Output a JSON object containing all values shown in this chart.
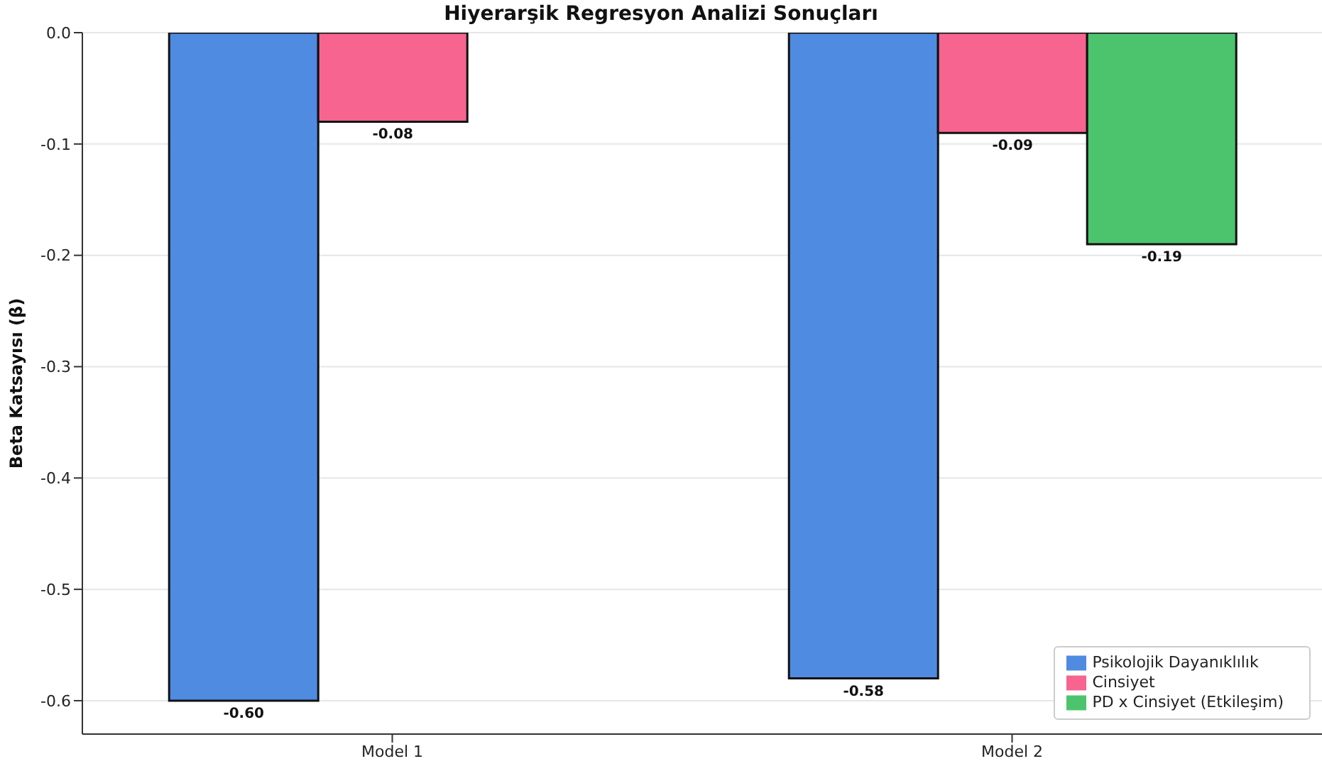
{
  "chart_data": {
    "type": "bar",
    "title": "Hiyerarşik Regresyon Analizi Sonuçları",
    "ylabel": "Beta Katsayısı (β)",
    "categories": [
      "Model 1",
      "Model 2"
    ],
    "series": [
      {
        "name": "Psikolojik Dayanıklılık",
        "color": "#4f8be0",
        "values": [
          -0.6,
          -0.58
        ],
        "value_labels": [
          "-0.60",
          "-0.58"
        ]
      },
      {
        "name": "Cinsiyet",
        "color": "#f7648f",
        "values": [
          -0.08,
          -0.09
        ],
        "value_labels": [
          "-0.08",
          "-0.09"
        ]
      },
      {
        "name": "PD x Cinsiyet (Etkileşim)",
        "color": "#4cc46e",
        "values": [
          null,
          -0.19
        ],
        "value_labels": [
          null,
          "-0.19"
        ]
      }
    ],
    "ylim": [
      -0.63,
      0
    ],
    "yticks": [
      {
        "value": 0,
        "label": "0.0"
      },
      {
        "value": -0.1,
        "label": "-0.1"
      },
      {
        "value": -0.2,
        "label": "-0.2"
      },
      {
        "value": -0.3,
        "label": "-0.3"
      },
      {
        "value": -0.4,
        "label": "-0.4"
      },
      {
        "value": -0.5,
        "label": "-0.5"
      },
      {
        "value": -0.6,
        "label": "-0.6"
      }
    ],
    "grid": "y",
    "legend": "bottom right"
  }
}
